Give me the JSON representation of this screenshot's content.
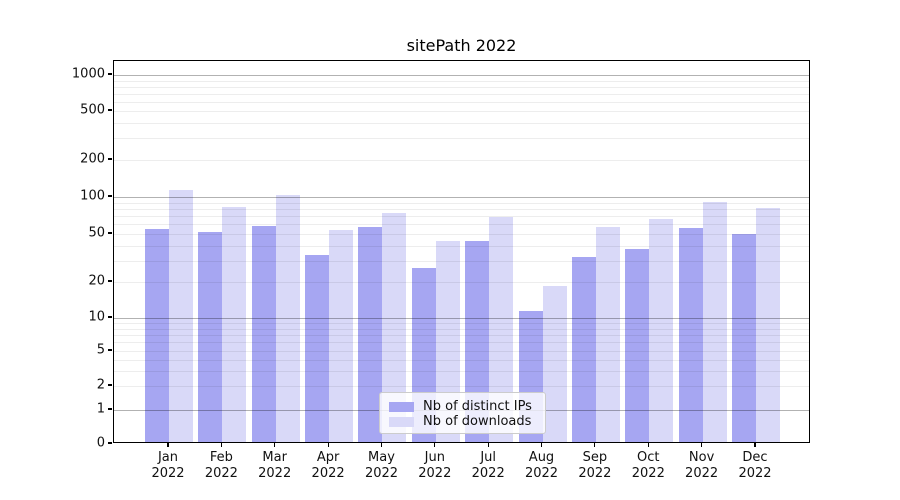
{
  "chart_data": {
    "type": "bar",
    "title": "sitePath 2022",
    "year_label": "2022",
    "categories": [
      "Jan",
      "Feb",
      "Mar",
      "Apr",
      "May",
      "Jun",
      "Jul",
      "Aug",
      "Sep",
      "Oct",
      "Nov",
      "Dec"
    ],
    "series": [
      {
        "name": "Nb of distinct IPs",
        "color": "#a6a6f2",
        "values": [
          53,
          50,
          56,
          32,
          55,
          25,
          42,
          11,
          31,
          36,
          54,
          48
        ]
      },
      {
        "name": "Nb of downloads",
        "color": "#d9d9f8",
        "values": [
          109,
          80,
          100,
          52,
          72,
          42,
          66,
          18,
          55,
          64,
          88,
          78
        ]
      }
    ],
    "ylabel": "",
    "xlabel": "",
    "yscale": "symlog",
    "ylim": [
      0,
      1200
    ],
    "yticks": [
      0,
      1,
      2,
      5,
      10,
      20,
      50,
      100,
      200,
      500,
      1000
    ],
    "major_gridlines": [
      1,
      10,
      100,
      1000
    ],
    "minor_gridlines": [
      2,
      3,
      4,
      5,
      6,
      7,
      8,
      9,
      20,
      30,
      40,
      50,
      60,
      70,
      80,
      90,
      200,
      300,
      400,
      500,
      600,
      700,
      800,
      900
    ],
    "grid": true,
    "legend_position": "lower center"
  }
}
